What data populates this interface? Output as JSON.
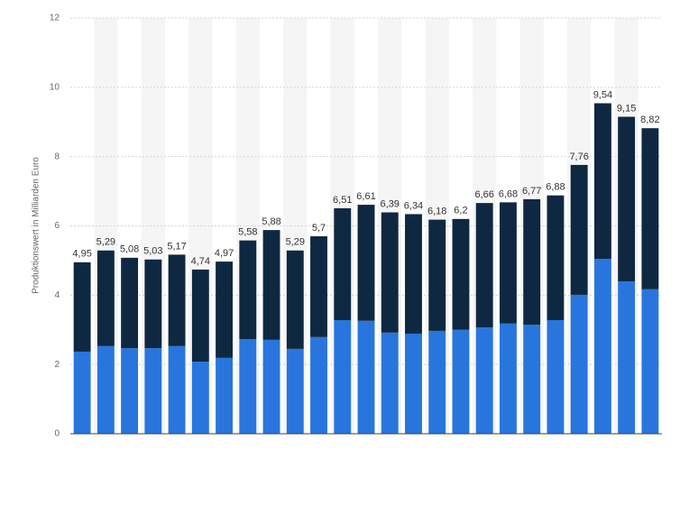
{
  "chart_data": {
    "type": "stacked_bar",
    "y_label": "Produktionswert in Milliarden Euro",
    "categories": [
      null,
      null,
      null,
      null,
      null,
      null,
      null,
      null,
      null,
      null,
      null,
      null,
      null,
      null,
      null,
      null,
      null,
      null,
      null,
      null,
      null,
      null,
      null,
      null,
      null
    ],
    "series": [
      {
        "color": "#2876dd",
        "values": [
          2.37,
          2.53,
          2.47,
          2.47,
          2.53,
          2.08,
          2.19,
          2.73,
          2.71,
          2.45,
          2.79,
          3.28,
          3.26,
          2.92,
          2.89,
          2.97,
          3.0,
          3.07,
          3.18,
          3.15,
          3.28,
          4.01,
          5.05,
          4.4,
          4.17
        ]
      },
      {
        "color": "#0f2841",
        "values": [
          2.58,
          2.76,
          2.61,
          2.56,
          2.64,
          2.66,
          2.78,
          2.85,
          3.17,
          2.84,
          2.91,
          3.23,
          3.35,
          3.47,
          3.45,
          3.21,
          3.2,
          3.59,
          3.5,
          3.62,
          3.6,
          3.75,
          4.49,
          4.75,
          4.65
        ]
      }
    ],
    "totals": [
      4.95,
      5.29,
      5.08,
      5.03,
      5.17,
      4.74,
      4.97,
      5.58,
      5.88,
      5.29,
      5.7,
      6.51,
      6.61,
      6.39,
      6.34,
      6.18,
      6.2,
      6.66,
      6.68,
      6.77,
      6.88,
      7.76,
      9.54,
      9.15,
      8.82
    ],
    "total_labels": [
      "4,95",
      "5,29",
      "5,08",
      "5,03",
      "5,17",
      "4,74",
      "4,97",
      "5,58",
      "5,88",
      "5,29",
      "5,7",
      "6,51",
      "6,61",
      "6,39",
      "6,34",
      "6,18",
      "6,2",
      "6,66",
      "6,68",
      "6,77",
      "6,88",
      "7,76",
      "9,54",
      "9,15",
      "8,82"
    ],
    "ylim": [
      0,
      12
    ],
    "yticks": [
      0,
      2,
      4,
      6,
      8,
      10,
      12
    ],
    "grid": true
  }
}
